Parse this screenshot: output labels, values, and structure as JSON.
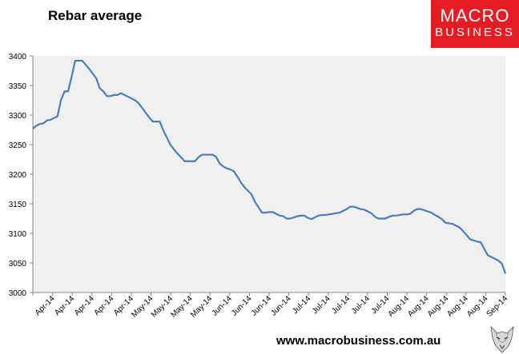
{
  "logo": {
    "line1": "MACRO",
    "line2": "BUSINESS"
  },
  "footer": {
    "url": "www.macrobusiness.com.au"
  },
  "colors": {
    "line": "#4a7ebb",
    "plot_bg": "#f0f0f0",
    "logo_bg": "#e51c23"
  },
  "chart_data": {
    "type": "line",
    "title": "Rebar average",
    "xlabel": "",
    "ylabel": "",
    "ylim": [
      3000,
      3400
    ],
    "yticks": [
      3000,
      3050,
      3100,
      3150,
      3200,
      3250,
      3300,
      3350,
      3400
    ],
    "grid": false,
    "x_tick_labels": [
      "Apr-14",
      "Apr-14",
      "Apr-14",
      "Apr-14",
      "Apr-14",
      "May-14",
      "May-14",
      "May-14",
      "May-14",
      "Jun-14",
      "Jun-14",
      "Jun-14",
      "Jun-14",
      "Jul-14",
      "Jul-14",
      "Jul-14",
      "Jul-14",
      "Jul-14",
      "Aug-14",
      "Aug-14",
      "Aug-14",
      "Aug-14",
      "Aug-14",
      "Sep-14"
    ],
    "series": [
      {
        "values": [
          3277,
          3282,
          3285,
          3286,
          3291,
          3292,
          3295,
          3298,
          3326,
          3340,
          3340,
          3365,
          3392,
          3392,
          3392,
          3385,
          3378,
          3370,
          3362,
          3345,
          3340,
          3332,
          3332,
          3334,
          3334,
          3337,
          3334,
          3331,
          3328,
          3325,
          3320,
          3312,
          3304,
          3296,
          3289,
          3289,
          3289,
          3274,
          3262,
          3250,
          3242,
          3235,
          3229,
          3222,
          3222,
          3222,
          3222,
          3229,
          3233,
          3233,
          3233,
          3233,
          3229,
          3218,
          3213,
          3210,
          3208,
          3205,
          3196,
          3186,
          3178,
          3172,
          3166,
          3153,
          3144,
          3135,
          3135,
          3136,
          3136,
          3133,
          3130,
          3129,
          3125,
          3125,
          3127,
          3129,
          3130,
          3130,
          3126,
          3124,
          3127,
          3130,
          3131,
          3131,
          3132,
          3133,
          3134,
          3135,
          3138,
          3141,
          3145,
          3145,
          3143,
          3141,
          3140,
          3137,
          3134,
          3128,
          3125,
          3125,
          3125,
          3128,
          3130,
          3130,
          3131,
          3132,
          3132,
          3133,
          3138,
          3141,
          3141,
          3139,
          3137,
          3135,
          3131,
          3128,
          3124,
          3118,
          3117,
          3116,
          3113,
          3110,
          3104,
          3097,
          3090,
          3088,
          3086,
          3085,
          3074,
          3063,
          3060,
          3057,
          3054,
          3049,
          3032
        ]
      }
    ]
  }
}
